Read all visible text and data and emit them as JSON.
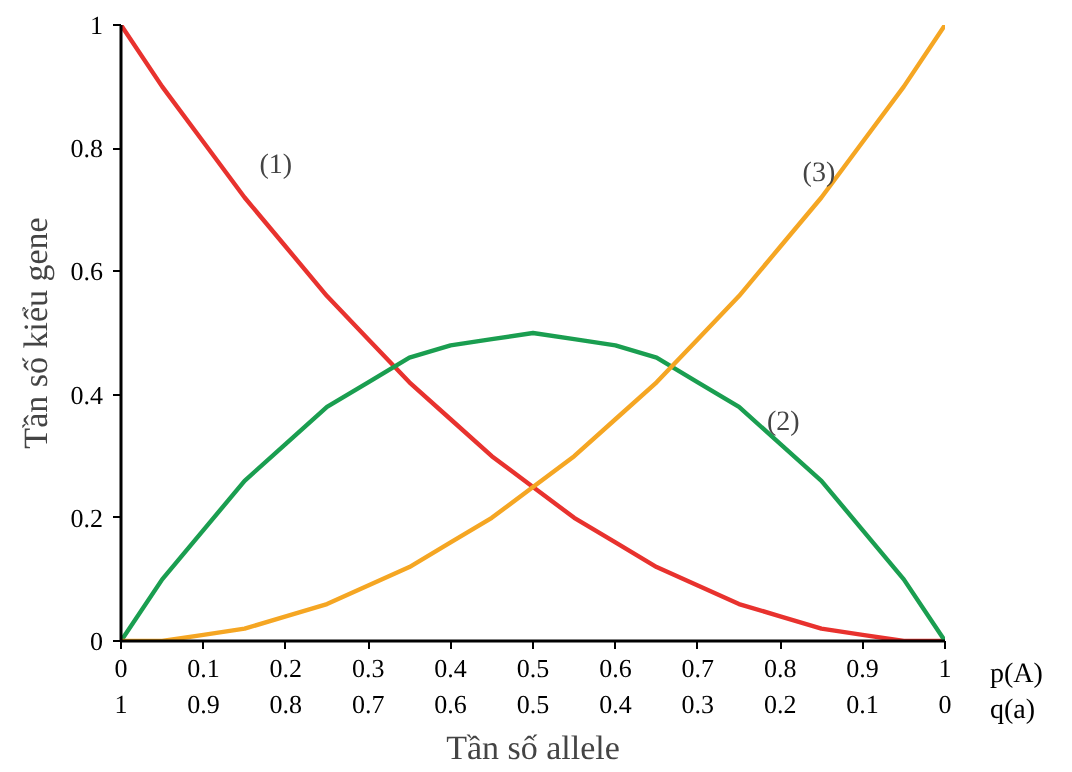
{
  "chart_data": {
    "type": "line",
    "xlabel": "Tần số allele",
    "ylabel": "Tần số kiểu gene",
    "x": [
      0,
      0.05,
      0.1,
      0.15,
      0.2,
      0.25,
      0.3,
      0.35,
      0.4,
      0.45,
      0.5,
      0.55,
      0.6,
      0.65,
      0.7,
      0.75,
      0.8,
      0.85,
      0.9,
      0.95,
      1
    ],
    "series": [
      {
        "name": "(1)",
        "color": "#e8322e",
        "values": [
          1,
          0.9,
          0.81,
          0.72,
          0.64,
          0.56,
          0.49,
          0.42,
          0.36,
          0.3,
          0.25,
          0.2,
          0.16,
          0.12,
          0.09,
          0.06,
          0.04,
          0.02,
          0.01,
          0,
          0
        ]
      },
      {
        "name": "(2)",
        "color": "#1a9e50",
        "values": [
          0,
          0.1,
          0.18,
          0.26,
          0.32,
          0.38,
          0.42,
          0.46,
          0.48,
          0.49,
          0.5,
          0.49,
          0.48,
          0.46,
          0.42,
          0.38,
          0.32,
          0.26,
          0.18,
          0.1,
          0
        ]
      },
      {
        "name": "(3)",
        "color": "#f5a623",
        "values": [
          0,
          0,
          0.01,
          0.02,
          0.04,
          0.06,
          0.09,
          0.12,
          0.16,
          0.2,
          0.25,
          0.3,
          0.36,
          0.42,
          0.49,
          0.56,
          0.64,
          0.72,
          0.81,
          0.9,
          1
        ]
      }
    ],
    "xlim": [
      0,
      1
    ],
    "xticks": [
      0,
      0.1,
      0.2,
      0.3,
      0.4,
      0.5,
      0.6,
      0.7,
      0.8,
      0.9,
      1
    ],
    "x2lim": [
      1,
      0
    ],
    "x2ticks": [
      1,
      0.9,
      0.8,
      0.7,
      0.6,
      0.5,
      0.4,
      0.3,
      0.2,
      0.1,
      0
    ],
    "ylim": [
      0,
      1
    ],
    "yticks": [
      0,
      0.2,
      0.4,
      0.6,
      0.8,
      1
    ],
    "grid": false,
    "legend": false,
    "marker": "none",
    "line_style": "solid",
    "annotations": [
      "p(A)",
      "q(a)"
    ]
  }
}
